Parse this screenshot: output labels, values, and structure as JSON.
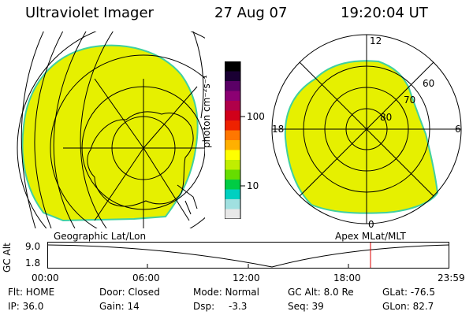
{
  "header": {
    "instrument": "Ultraviolet Imager",
    "date": "27 Aug 07",
    "time": "19:20:04 UT"
  },
  "colorbar": {
    "unit_label": "photon cm⁻²s⁻¹",
    "tick_100": "100",
    "tick_10": "10",
    "colors": [
      "#000000",
      "#1a0033",
      "#5a0066",
      "#8c0073",
      "#b0004a",
      "#d1001a",
      "#ee2200",
      "#ff7700",
      "#ffb000",
      "#ffff00",
      "#c0ee00",
      "#66dd00",
      "#00cc44",
      "#00d0c0",
      "#a0e0e0",
      "#e8e8e8"
    ]
  },
  "polar_plot": {
    "label_12": "12",
    "label_18": "18",
    "label_6": "6",
    "label_0": "0",
    "label_60": "60",
    "label_70": "70",
    "label_80": "80",
    "fill_color": "#e6f000",
    "edge_color": "#40d0a0"
  },
  "map_labels": {
    "left": "Geographic Lat/Lon",
    "right": "Apex  MLat/MLT"
  },
  "timeline": {
    "ylabel": "GC Alt",
    "y_top": "9.0",
    "y_bottom": "1.8",
    "ticks": [
      "00:00",
      "06:00",
      "12:00",
      "18:00",
      "23:59"
    ],
    "marker_color": "#dd0000"
  },
  "info": {
    "flt": "Flt: HOME",
    "door": "Door: Closed",
    "mode": "Mode: Normal",
    "gcalt": "GC Alt: 8.0 Re",
    "glat": "GLat: -76.5",
    "ip": "IP: 36.0",
    "gain": "Gain: 14",
    "dsp_label": "Dsp:",
    "dsp_value": "-3.3",
    "seq": "Seq: 39",
    "glon": "GLon:  82.7"
  }
}
